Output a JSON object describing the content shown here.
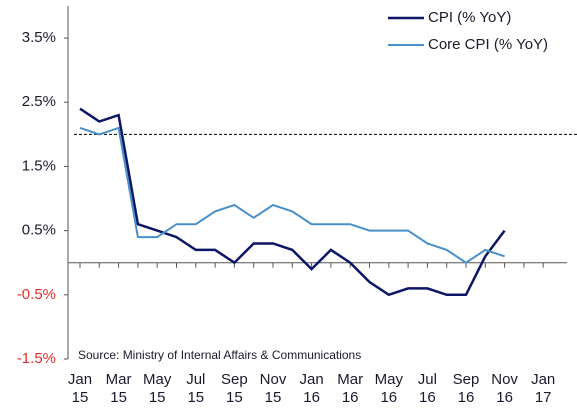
{
  "chart_data": {
    "type": "line",
    "categories": [
      "Jan 15",
      null,
      "Mar 15",
      null,
      "May 15",
      null,
      "Jul 15",
      null,
      "Sep 15",
      null,
      "Nov 15",
      null,
      "Jan 16",
      null,
      "Mar 16",
      null,
      "May 16",
      null,
      "Jul 16",
      null,
      "Sep 16",
      null,
      "Nov 16",
      null,
      "Jan 17"
    ],
    "series": [
      {
        "name": "CPI (% YoY)",
        "color": "#0c1566",
        "values": [
          2.4,
          2.2,
          2.3,
          0.6,
          0.5,
          0.4,
          0.2,
          0.2,
          0.0,
          0.3,
          0.3,
          0.2,
          -0.1,
          0.2,
          0.0,
          -0.3,
          -0.5,
          -0.4,
          -0.4,
          -0.5,
          -0.5,
          0.1,
          0.5,
          null,
          null
        ]
      },
      {
        "name": "Core CPI (% YoY)",
        "color": "#4a90c8",
        "values": [
          2.1,
          2.0,
          2.1,
          0.4,
          0.4,
          0.6,
          0.6,
          0.8,
          0.9,
          0.7,
          0.9,
          0.8,
          0.6,
          0.6,
          0.6,
          0.5,
          0.5,
          0.5,
          0.3,
          0.2,
          0.0,
          0.2,
          0.1,
          null,
          null
        ]
      }
    ],
    "ylim": [
      -1.5,
      4.0
    ],
    "yticks": [
      {
        "value": -1.5,
        "label": "-1.5%"
      },
      {
        "value": -0.5,
        "label": "-0.5%"
      },
      {
        "value": 0.5,
        "label": "0.5%"
      },
      {
        "value": 1.5,
        "label": "1.5%"
      },
      {
        "value": 2.5,
        "label": "2.5%"
      },
      {
        "value": 3.5,
        "label": "3.5%"
      }
    ],
    "negative_tick_color": "#e0302a",
    "reference_line": 2.0,
    "legend": "top-right",
    "source": "Source: Ministry of Internal Affairs & Communications"
  }
}
